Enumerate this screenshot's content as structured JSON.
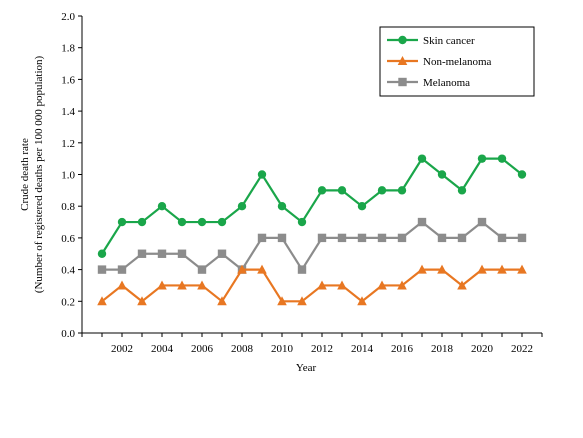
{
  "chart_data": {
    "type": "line",
    "xlabel": "Year",
    "ylabel_lines": [
      "Crude death rate",
      "(Number of registered deaths per 100 000 population)"
    ],
    "x": [
      2001,
      2002,
      2003,
      2004,
      2005,
      2006,
      2007,
      2008,
      2009,
      2010,
      2011,
      2012,
      2013,
      2014,
      2015,
      2016,
      2017,
      2018,
      2019,
      2020,
      2021,
      2022
    ],
    "xticks": [
      "2002",
      "2004",
      "2006",
      "2008",
      "2010",
      "2012",
      "2014",
      "2016",
      "2018",
      "2020",
      "2022"
    ],
    "xlim": [
      2000,
      2023
    ],
    "ylim": [
      0,
      2.0
    ],
    "yticks": [
      "0.0",
      "0.2",
      "0.4",
      "0.6",
      "0.8",
      "1.0",
      "1.2",
      "1.4",
      "1.6",
      "1.8",
      "2.0"
    ],
    "grid": false,
    "legend_position": "top-right",
    "series": [
      {
        "name": "Skin cancer",
        "color": "#1aa64a",
        "marker": "circle",
        "values": [
          0.5,
          0.7,
          0.7,
          0.8,
          0.7,
          0.7,
          0.7,
          0.8,
          1.0,
          0.8,
          0.7,
          0.9,
          0.9,
          0.8,
          0.9,
          0.9,
          1.1,
          1.0,
          0.9,
          1.1,
          1.1,
          1.0
        ]
      },
      {
        "name": "Non-melanoma",
        "color": "#e87722",
        "marker": "triangle",
        "values": [
          0.2,
          0.3,
          0.2,
          0.3,
          0.3,
          0.3,
          0.2,
          0.4,
          0.4,
          0.2,
          0.2,
          0.3,
          0.3,
          0.2,
          0.3,
          0.3,
          0.4,
          0.4,
          0.3,
          0.4,
          0.4,
          0.4
        ]
      },
      {
        "name": "Melanoma",
        "color": "#8c8c8c",
        "marker": "square",
        "values": [
          0.4,
          0.4,
          0.5,
          0.5,
          0.5,
          0.4,
          0.5,
          0.4,
          0.6,
          0.6,
          0.4,
          0.6,
          0.6,
          0.6,
          0.6,
          0.6,
          0.7,
          0.6,
          0.6,
          0.7,
          0.6,
          0.6
        ]
      }
    ]
  }
}
